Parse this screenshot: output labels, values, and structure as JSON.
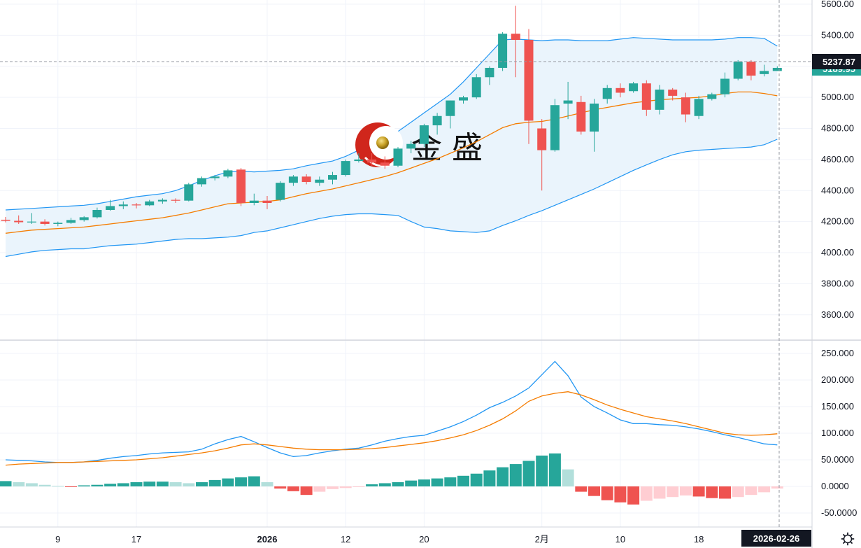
{
  "watermark": {
    "icon": "jinsheng-logo-icon",
    "text": "金 盛"
  },
  "colors": {
    "up": "#26a69a",
    "down": "#ef5350",
    "up_light": "#b2dfdb",
    "down_light": "#ffcdd2",
    "bb_line": "#2196f3",
    "bb_fill": "#eaf4fc",
    "mid_line": "#f57c00",
    "macd_line": "#2196f3",
    "signal_line": "#f57c00",
    "grid": "#f0f3fa"
  },
  "price_badges": {
    "last": "5237.87",
    "last_partial": "5189.95"
  },
  "time_badge": "2026-02-26",
  "settings_icon": "gear-icon",
  "chart_data": [
    {
      "type": "candlestick",
      "title": "",
      "ylim": [
        3400,
        5600
      ],
      "y_ticks": [
        "5600.00",
        "5400.00",
        "5200.00",
        "5000.00",
        "4800.00",
        "4600.00",
        "4400.00",
        "4200.00",
        "4000.00",
        "3800.00",
        "3600.00"
      ],
      "x_ticks": [
        {
          "label": "9",
          "index": 4
        },
        {
          "label": "17",
          "index": 10
        },
        {
          "label": "2026",
          "index": 20
        },
        {
          "label": "12",
          "index": 26
        },
        {
          "label": "20",
          "index": 32
        },
        {
          "label": "2月",
          "index": 41
        },
        {
          "label": "10",
          "index": 47
        },
        {
          "label": "18",
          "index": 53
        }
      ],
      "candles": [
        [
          4212,
          4230,
          4195,
          4205
        ],
        [
          4205,
          4240,
          4185,
          4196
        ],
        [
          4196,
          4255,
          4185,
          4200
        ],
        [
          4200,
          4215,
          4175,
          4185
        ],
        [
          4185,
          4200,
          4170,
          4192
        ],
        [
          4192,
          4225,
          4185,
          4210
        ],
        [
          4210,
          4235,
          4200,
          4228
        ],
        [
          4228,
          4290,
          4220,
          4275
        ],
        [
          4275,
          4340,
          4270,
          4300
        ],
        [
          4300,
          4330,
          4280,
          4310
        ],
        [
          4310,
          4320,
          4285,
          4305
        ],
        [
          4305,
          4340,
          4300,
          4330
        ],
        [
          4330,
          4350,
          4315,
          4340
        ],
        [
          4340,
          4350,
          4320,
          4335
        ],
        [
          4335,
          4450,
          4330,
          4440
        ],
        [
          4440,
          4490,
          4425,
          4480
        ],
        [
          4480,
          4500,
          4465,
          4490
        ],
        [
          4490,
          4540,
          4480,
          4530
        ],
        [
          4535,
          4545,
          4300,
          4320
        ],
        [
          4320,
          4380,
          4305,
          4335
        ],
        [
          4335,
          4365,
          4280,
          4320
        ],
        [
          4340,
          4460,
          4330,
          4450
        ],
        [
          4450,
          4500,
          4430,
          4490
        ],
        [
          4490,
          4505,
          4440,
          4455
        ],
        [
          4450,
          4490,
          4430,
          4470
        ],
        [
          4470,
          4520,
          4440,
          4500
        ],
        [
          4500,
          4600,
          4490,
          4590
        ],
        [
          4590,
          4640,
          4580,
          4600
        ],
        [
          4600,
          4640,
          4560,
          4580
        ],
        [
          4580,
          4620,
          4540,
          4560
        ],
        [
          4560,
          4680,
          4550,
          4670
        ],
        [
          4670,
          4720,
          4640,
          4700
        ],
        [
          4700,
          4830,
          4680,
          4820
        ],
        [
          4820,
          4900,
          4760,
          4880
        ],
        [
          4880,
          4980,
          4800,
          4980
        ],
        [
          4980,
          5010,
          4960,
          5000
        ],
        [
          5000,
          5150,
          4990,
          5130
        ],
        [
          5130,
          5200,
          5080,
          5190
        ],
        [
          5190,
          5420,
          5170,
          5410
        ],
        [
          5410,
          5590,
          5130,
          5370
        ],
        [
          5370,
          5440,
          4700,
          4850
        ],
        [
          4800,
          4860,
          4400,
          4660
        ],
        [
          4660,
          4990,
          4650,
          4950
        ],
        [
          4960,
          5100,
          4860,
          4980
        ],
        [
          4970,
          5010,
          4760,
          4780
        ],
        [
          4780,
          4990,
          4650,
          4960
        ],
        [
          4990,
          5080,
          4960,
          5060
        ],
        [
          5060,
          5090,
          5000,
          5030
        ],
        [
          5040,
          5100,
          5030,
          5090
        ],
        [
          5090,
          5110,
          4880,
          4920
        ],
        [
          4920,
          5080,
          4890,
          5050
        ],
        [
          5050,
          5060,
          4980,
          5010
        ],
        [
          5000,
          5030,
          4840,
          4890
        ],
        [
          4880,
          5010,
          4860,
          4990
        ],
        [
          4990,
          5030,
          4980,
          5020
        ],
        [
          5020,
          5160,
          5000,
          5120
        ],
        [
          5120,
          5240,
          5110,
          5230
        ],
        [
          5230,
          5240,
          5110,
          5140
        ],
        [
          5150,
          5210,
          5135,
          5170
        ],
        [
          5170,
          5200,
          5170,
          5190
        ]
      ],
      "bollinger": {
        "upper": [
          4275,
          4280,
          4285,
          4290,
          4295,
          4300,
          4305,
          4315,
          4330,
          4345,
          4360,
          4370,
          4380,
          4400,
          4430,
          4465,
          4495,
          4520,
          4525,
          4520,
          4525,
          4530,
          4540,
          4560,
          4575,
          4590,
          4620,
          4660,
          4700,
          4740,
          4780,
          4840,
          4900,
          4960,
          5020,
          5100,
          5190,
          5280,
          5370,
          5375,
          5370,
          5365,
          5370,
          5370,
          5365,
          5365,
          5365,
          5375,
          5385,
          5380,
          5375,
          5370,
          5370,
          5370,
          5370,
          5375,
          5385,
          5385,
          5380,
          5330
        ],
        "middle": [
          4125,
          4135,
          4145,
          4150,
          4155,
          4160,
          4165,
          4175,
          4185,
          4195,
          4205,
          4215,
          4225,
          4240,
          4255,
          4275,
          4295,
          4315,
          4320,
          4325,
          4330,
          4340,
          4360,
          4380,
          4395,
          4410,
          4430,
          4450,
          4470,
          4490,
          4515,
          4545,
          4575,
          4605,
          4640,
          4675,
          4715,
          4760,
          4805,
          4830,
          4840,
          4845,
          4860,
          4880,
          4900,
          4920,
          4935,
          4950,
          4965,
          4975,
          4985,
          4990,
          4995,
          5000,
          5010,
          5025,
          5035,
          5035,
          5025,
          5010
        ],
        "lower": [
          3975,
          3990,
          4005,
          4015,
          4020,
          4025,
          4025,
          4035,
          4045,
          4050,
          4055,
          4065,
          4075,
          4085,
          4090,
          4090,
          4095,
          4100,
          4110,
          4130,
          4140,
          4160,
          4180,
          4200,
          4220,
          4235,
          4245,
          4250,
          4250,
          4245,
          4240,
          4200,
          4165,
          4155,
          4140,
          4135,
          4130,
          4140,
          4175,
          4205,
          4240,
          4270,
          4305,
          4340,
          4375,
          4410,
          4450,
          4490,
          4530,
          4565,
          4600,
          4630,
          4650,
          4660,
          4665,
          4670,
          4675,
          4680,
          4695,
          4730
        ]
      }
    },
    {
      "type": "macd",
      "title": "",
      "ylim": [
        -70,
        270
      ],
      "y_ticks": [
        "250.000",
        "200.000",
        "150.000",
        "100.000",
        "50.0000",
        "0.0000",
        "-50.0000"
      ],
      "macd": [
        50,
        49,
        48,
        46,
        45,
        45,
        46,
        49,
        53,
        56,
        58,
        61,
        63,
        64,
        65,
        70,
        80,
        88,
        94,
        84,
        73,
        63,
        56,
        58,
        63,
        67,
        70,
        72,
        78,
        85,
        90,
        94,
        96,
        104,
        112,
        122,
        134,
        148,
        158,
        170,
        185,
        210,
        235,
        208,
        168,
        150,
        138,
        125,
        118,
        118,
        116,
        115,
        112,
        108,
        103,
        97,
        92,
        86,
        80,
        78
      ],
      "signal": [
        40,
        42,
        43,
        44,
        45,
        45,
        46,
        47,
        48,
        49,
        50,
        52,
        54,
        57,
        60,
        63,
        67,
        72,
        78,
        80,
        78,
        75,
        72,
        70,
        69,
        69,
        69,
        70,
        71,
        73,
        76,
        79,
        82,
        86,
        91,
        97,
        105,
        115,
        127,
        142,
        160,
        170,
        175,
        178,
        172,
        163,
        153,
        145,
        138,
        131,
        127,
        123,
        118,
        112,
        106,
        100,
        97,
        96,
        97,
        99
      ],
      "histogram": [
        10,
        8,
        6,
        3,
        1,
        -1,
        2,
        3,
        5,
        6,
        8,
        9,
        9,
        8,
        6,
        8,
        12,
        15,
        17,
        19,
        8,
        -4,
        -9,
        -16,
        -10,
        -5,
        -3,
        -1,
        4,
        6,
        8,
        11,
        13,
        15,
        17,
        20,
        24,
        30,
        36,
        42,
        48,
        58,
        62,
        32,
        -10,
        -18,
        -26,
        -30,
        -34,
        -27,
        -23,
        -20,
        -17,
        -19,
        -22,
        -23,
        -20,
        -16,
        -11,
        -4
      ]
    }
  ]
}
